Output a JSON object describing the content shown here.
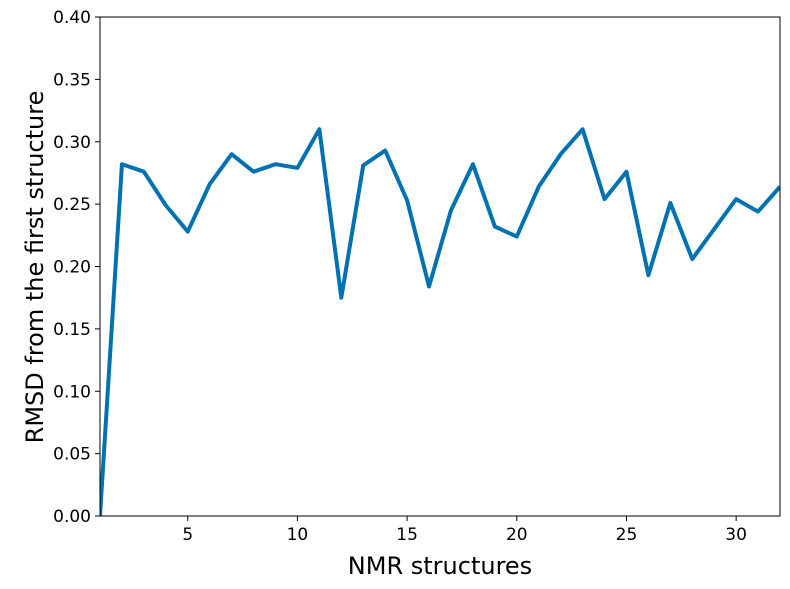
{
  "chart_data": {
    "type": "line",
    "xlabel": "NMR structures",
    "ylabel": "RMSD from the first structure",
    "xlim": [
      1,
      32
    ],
    "ylim": [
      0.0,
      0.4
    ],
    "xticks": [
      5,
      10,
      15,
      20,
      25,
      30
    ],
    "xtick_labels": [
      "5",
      "10",
      "15",
      "20",
      "25",
      "30"
    ],
    "yticks": [
      0.0,
      0.05,
      0.1,
      0.15,
      0.2,
      0.25,
      0.3,
      0.35,
      0.4
    ],
    "ytick_labels": [
      "0.00",
      "0.05",
      "0.10",
      "0.15",
      "0.20",
      "0.25",
      "0.30",
      "0.35",
      "0.40"
    ],
    "grid": false,
    "series": [
      {
        "color": "#0072b2",
        "x": [
          1,
          2,
          3,
          4,
          5,
          6,
          7,
          8,
          9,
          10,
          11,
          12,
          13,
          14,
          15,
          16,
          17,
          18,
          19,
          20,
          21,
          22,
          23,
          24,
          25,
          26,
          27,
          28,
          29,
          30,
          31,
          32
        ],
        "values": [
          0.0,
          0.282,
          0.276,
          0.249,
          0.228,
          0.266,
          0.29,
          0.276,
          0.282,
          0.279,
          0.31,
          0.175,
          0.281,
          0.293,
          0.253,
          0.184,
          0.245,
          0.282,
          0.232,
          0.224,
          0.264,
          0.29,
          0.31,
          0.254,
          0.276,
          0.193,
          0.251,
          0.206,
          0.23,
          0.254,
          0.244,
          0.264
        ]
      }
    ]
  }
}
